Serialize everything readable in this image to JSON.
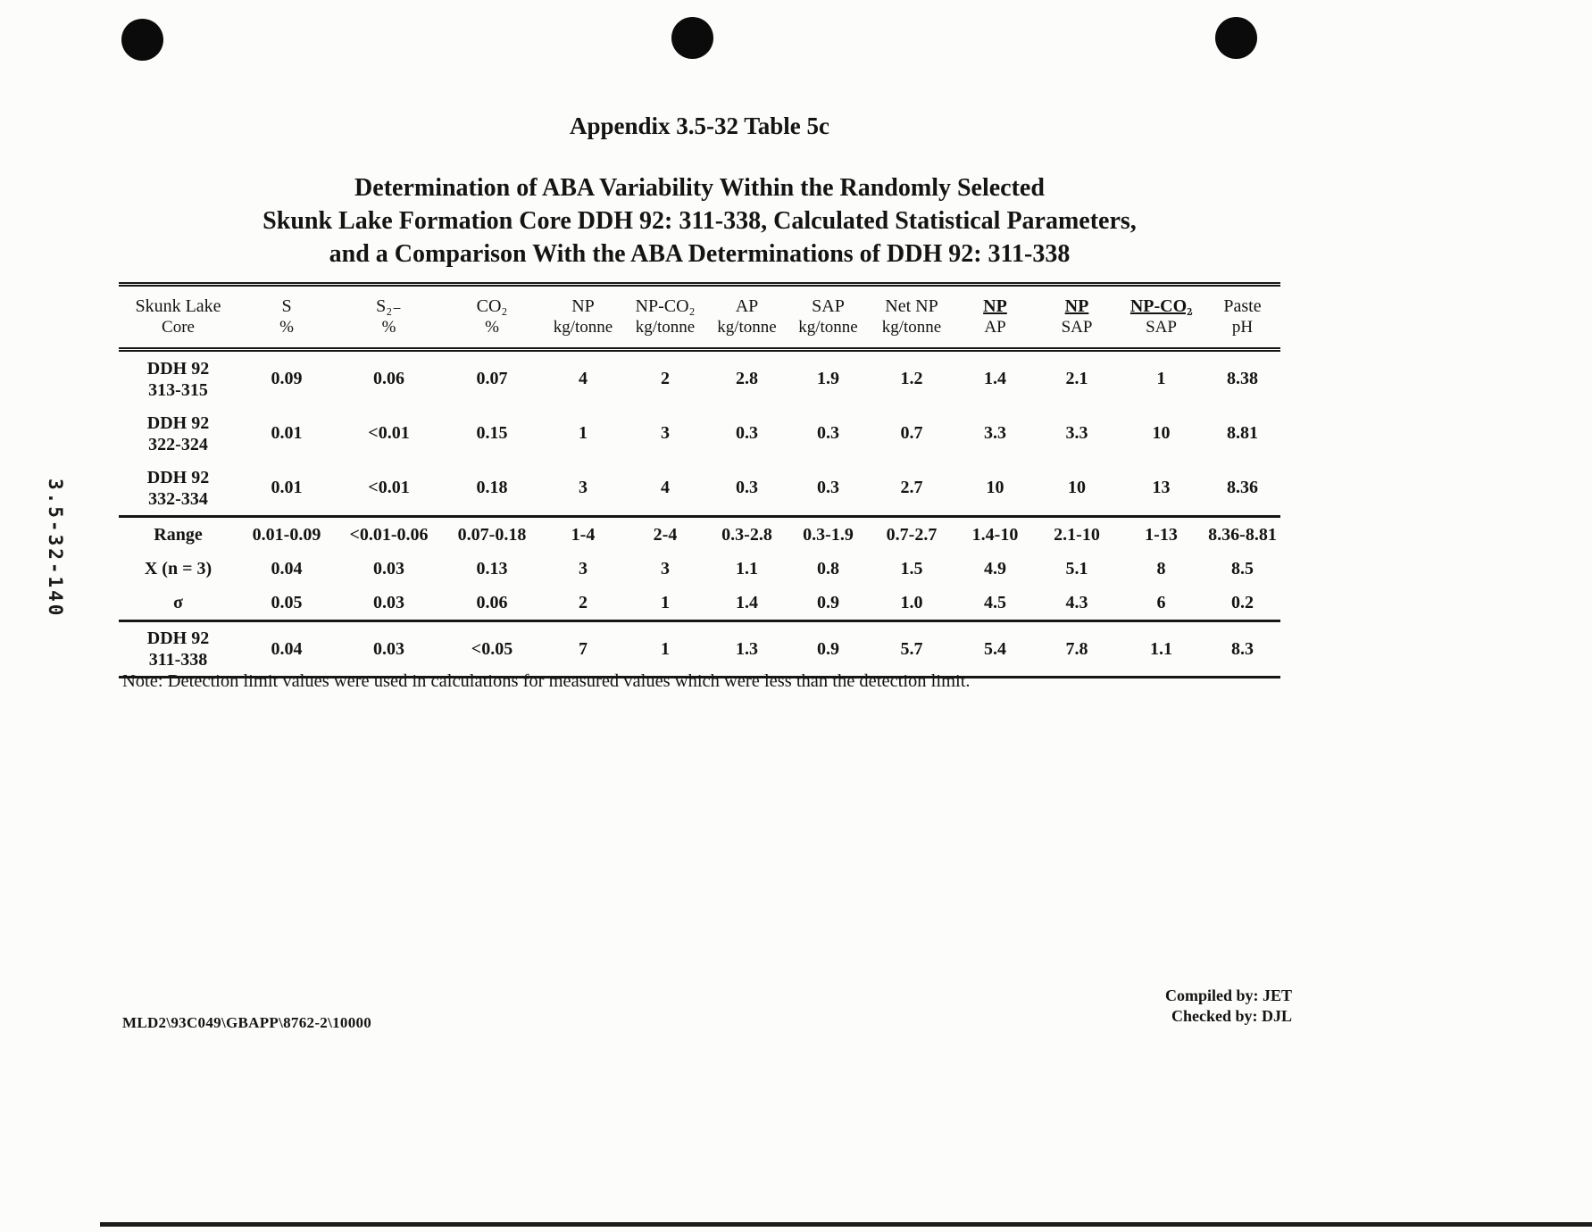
{
  "page": {
    "title": "Appendix 3.5-32 Table 5c",
    "subtitle_line1": "Determination of ABA Variability Within the Randomly Selected",
    "subtitle_line2": "Skunk Lake Formation Core DDH 92: 311-338, Calculated Statistical Parameters,",
    "subtitle_line3": "and a Comparison With the ABA Determinations of DDH 92: 311-338",
    "side_label": "3.5-32-140",
    "note": "Note:  Detection limit values were used in calculations for measured values which were less than the detection limit.",
    "footer_left": "MLD2\\93C049\\GBAPP\\8762-2\\10000",
    "compiled_by": "Compiled by:  JET",
    "checked_by": "Checked by:  DJL"
  },
  "table": {
    "columns": [
      {
        "line1": "Skunk Lake",
        "line2": "Core"
      },
      {
        "line1": "S",
        "line2": "%"
      },
      {
        "line1": "S₂₋",
        "line2": "%"
      },
      {
        "line1": "CO₂",
        "line2": "%"
      },
      {
        "line1": "NP",
        "line2": "kg/tonne"
      },
      {
        "line1": "NP-CO₂",
        "line2": "kg/tonne"
      },
      {
        "line1": "AP",
        "line2": "kg/tonne"
      },
      {
        "line1": "SAP",
        "line2": "kg/tonne"
      },
      {
        "line1": "Net NP",
        "line2": "kg/tonne"
      },
      {
        "line1": "NP",
        "line2": "AP"
      },
      {
        "line1": "NP",
        "line2": "SAP"
      },
      {
        "line1": "NP-CO₂",
        "line2": "SAP"
      },
      {
        "line1": "Paste",
        "line2": "pH"
      }
    ],
    "row_groups": [
      {
        "rows": [
          {
            "label_lines": [
              "DDH 92",
              "313-315"
            ],
            "values": [
              "0.09",
              "0.06",
              "0.07",
              "4",
              "2",
              "2.8",
              "1.9",
              "1.2",
              "1.4",
              "2.1",
              "1",
              "8.38"
            ]
          },
          {
            "label_lines": [
              "DDH 92",
              "322-324"
            ],
            "values": [
              "0.01",
              "<0.01",
              "0.15",
              "1",
              "3",
              "0.3",
              "0.3",
              "0.7",
              "3.3",
              "3.3",
              "10",
              "8.81"
            ]
          },
          {
            "label_lines": [
              "DDH 92",
              "332-334"
            ],
            "values": [
              "0.01",
              "<0.01",
              "0.18",
              "3",
              "4",
              "0.3",
              "0.3",
              "2.7",
              "10",
              "10",
              "13",
              "8.36"
            ]
          }
        ]
      },
      {
        "rows": [
          {
            "label_lines": [
              "Range"
            ],
            "values": [
              "0.01-0.09",
              "<0.01-0.06",
              "0.07-0.18",
              "1-4",
              "2-4",
              "0.3-2.8",
              "0.3-1.9",
              "0.7-2.7",
              "1.4-10",
              "2.1-10",
              "1-13",
              "8.36-8.81"
            ]
          },
          {
            "label_lines": [
              "X (n = 3)"
            ],
            "values": [
              "0.04",
              "0.03",
              "0.13",
              "3",
              "3",
              "1.1",
              "0.8",
              "1.5",
              "4.9",
              "5.1",
              "8",
              "8.5"
            ]
          },
          {
            "label_lines": [
              "σ"
            ],
            "values": [
              "0.05",
              "0.03",
              "0.06",
              "2",
              "1",
              "1.4",
              "0.9",
              "1.0",
              "4.5",
              "4.3",
              "6",
              "0.2"
            ]
          }
        ]
      },
      {
        "rows": [
          {
            "label_lines": [
              "DDH 92",
              "311-338"
            ],
            "values": [
              "0.04",
              "0.03",
              "<0.05",
              "7",
              "1",
              "1.3",
              "0.9",
              "5.7",
              "5.4",
              "7.8",
              "1.1",
              "8.3"
            ]
          }
        ]
      }
    ]
  }
}
